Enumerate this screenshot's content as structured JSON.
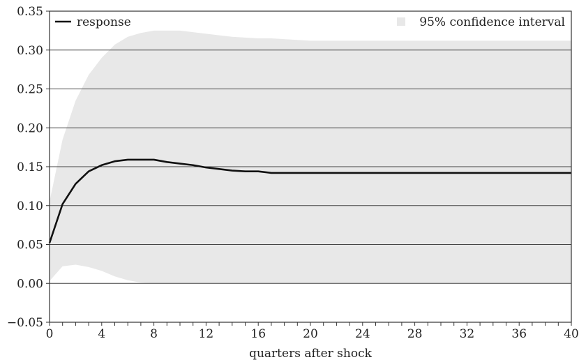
{
  "chart_data": {
    "type": "area",
    "xlabel": "quarters after shock",
    "ylabel": "",
    "xlim": [
      0,
      40
    ],
    "ylim": [
      -0.05,
      0.35
    ],
    "x_ticks": [
      0,
      4,
      8,
      12,
      16,
      20,
      24,
      28,
      32,
      36,
      40
    ],
    "x_tick_labels": [
      "0",
      "4",
      "8",
      "12",
      "16",
      "20",
      "24",
      "28",
      "32",
      "36",
      "40"
    ],
    "y_ticks": [
      -0.05,
      0.0,
      0.05,
      0.1,
      0.15,
      0.2,
      0.25,
      0.3,
      0.35
    ],
    "y_tick_labels": [
      "−0.05",
      "0.00",
      "0.05",
      "0.10",
      "0.15",
      "0.20",
      "0.25",
      "0.30",
      "0.35"
    ],
    "grid": "horizontal",
    "legend_position": "top",
    "x": [
      0,
      1,
      2,
      3,
      4,
      5,
      6,
      7,
      8,
      9,
      10,
      11,
      12,
      13,
      14,
      15,
      16,
      17,
      18,
      19,
      20,
      21,
      22,
      23,
      24,
      25,
      26,
      27,
      28,
      29,
      30,
      31,
      32,
      33,
      34,
      35,
      36,
      37,
      38,
      39,
      40
    ],
    "series": [
      {
        "name": "response",
        "kind": "line",
        "color": "#111111",
        "values": [
          0.052,
          0.102,
          0.128,
          0.144,
          0.152,
          0.157,
          0.159,
          0.159,
          0.159,
          0.156,
          0.154,
          0.152,
          0.149,
          0.147,
          0.145,
          0.144,
          0.144,
          0.142,
          0.142,
          0.142,
          0.142,
          0.142,
          0.142,
          0.142,
          0.142,
          0.142,
          0.142,
          0.142,
          0.142,
          0.142,
          0.142,
          0.142,
          0.142,
          0.142,
          0.142,
          0.142,
          0.142,
          0.142,
          0.142,
          0.142,
          0.142
        ]
      },
      {
        "name": "95% confidence interval",
        "kind": "band",
        "color": "#e8e8e8",
        "lower": [
          0.003,
          0.022,
          0.024,
          0.021,
          0.016,
          0.009,
          0.004,
          0.001,
          0.0,
          0.0,
          0.0,
          0.0,
          0.0,
          0.0,
          0.0,
          0.0,
          0.0,
          0.0,
          0.0,
          0.0,
          0.0,
          0.0,
          0.0,
          0.0,
          0.0,
          0.0,
          0.0,
          0.0,
          0.0,
          0.0,
          0.0,
          0.0,
          0.0,
          0.0,
          0.0,
          0.0,
          0.0,
          0.0,
          0.0,
          0.0,
          0.0
        ],
        "upper": [
          0.105,
          0.185,
          0.235,
          0.268,
          0.29,
          0.307,
          0.317,
          0.322,
          0.325,
          0.325,
          0.325,
          0.323,
          0.321,
          0.319,
          0.317,
          0.316,
          0.315,
          0.315,
          0.314,
          0.313,
          0.312,
          0.312,
          0.312,
          0.312,
          0.312,
          0.312,
          0.312,
          0.312,
          0.312,
          0.312,
          0.312,
          0.312,
          0.312,
          0.312,
          0.312,
          0.312,
          0.312,
          0.312,
          0.312,
          0.312,
          0.312
        ]
      }
    ]
  }
}
